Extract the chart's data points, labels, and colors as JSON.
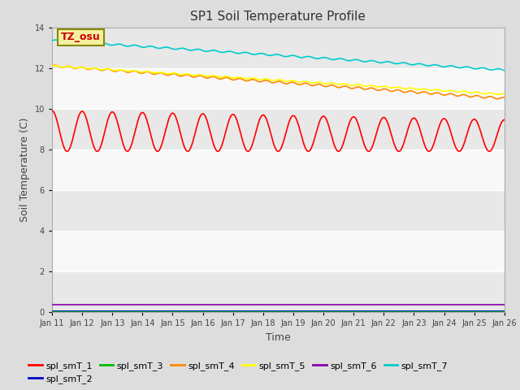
{
  "title": "SP1 Soil Temperature Profile",
  "xlabel": "Time",
  "ylabel": "Soil Temperature (C)",
  "annotation": "TZ_osu",
  "annotation_color": "#cc0000",
  "annotation_bg": "#f5f0a0",
  "annotation_border": "#888800",
  "ylim": [
    0,
    14
  ],
  "yticks": [
    0,
    2,
    4,
    6,
    8,
    10,
    12,
    14
  ],
  "fig_facecolor": "#dddddd",
  "axes_facecolor": "#ffffff",
  "band_colors": [
    "#e8e8e8",
    "#f8f8f8"
  ],
  "grid_color": "#ffffff",
  "legend_labels": [
    "spl_smT_1",
    "spl_smT_2",
    "spl_smT_3",
    "spl_smT_4",
    "spl_smT_5",
    "spl_smT_6",
    "spl_smT_7"
  ],
  "legend_colors": [
    "#ff0000",
    "#0000cc",
    "#00bb00",
    "#ff8800",
    "#ffff00",
    "#8800aa",
    "#00cccc"
  ],
  "xticklabels": [
    "Jan 11",
    "Jan 12",
    "Jan 13",
    "Jan 14",
    "Jan 15",
    "Jan 16",
    "Jan 17",
    "Jan 18",
    "Jan 19",
    "Jan 20",
    "Jan 21",
    "Jan 22",
    "Jan 23",
    "Jan 24",
    "Jan 25",
    "Jan 26"
  ],
  "num_days": 15,
  "tick_fontsize": 7,
  "label_fontsize": 9,
  "title_fontsize": 11
}
